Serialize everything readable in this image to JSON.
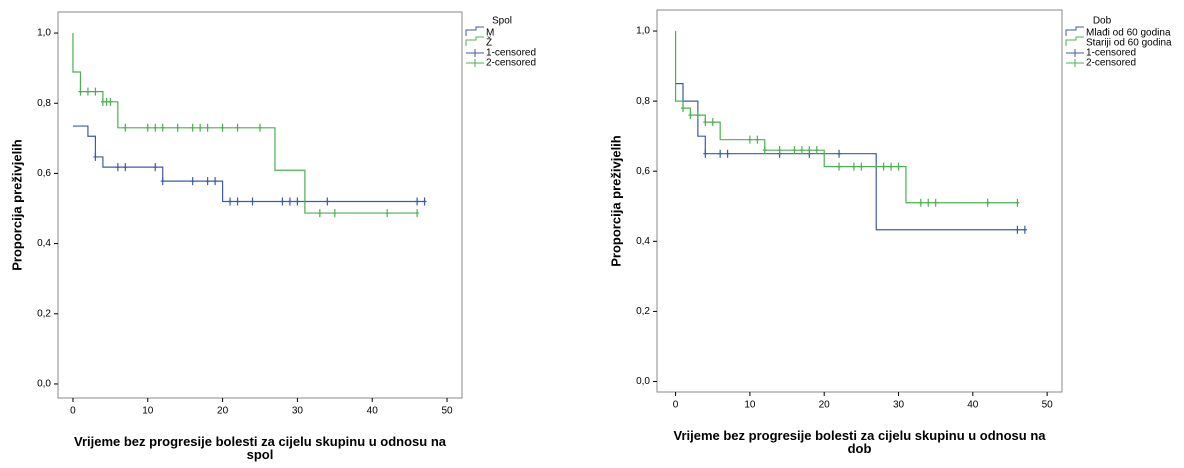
{
  "chart_data": [
    {
      "type": "kaplan-meier",
      "legend_title": "Spol",
      "xlabel": "Vrijeme bez progresije bolesti za cijelu skupinu u odnosu na spol",
      "ylabel": "Proporcija preživjelih",
      "xlim": [
        -2,
        52
      ],
      "ylim": [
        -0.04,
        1.06
      ],
      "xticks": [
        0,
        10,
        20,
        30,
        40,
        50
      ],
      "yticks": [
        {
          "value": 0,
          "label": "0,0"
        },
        {
          "value": 0.2,
          "label": "0,2"
        },
        {
          "value": 0.4,
          "label": "0,4"
        },
        {
          "value": 0.6,
          "label": "0,6"
        },
        {
          "value": 0.8,
          "label": "0,8"
        },
        {
          "value": 1,
          "label": "1,0"
        }
      ],
      "series": [
        {
          "name": "M",
          "color": "#3d5ba9",
          "marker": "step",
          "x": [
            0,
            2,
            3,
            4,
            12,
            20,
            47
          ],
          "values": [
            0.735,
            0.706,
            0.647,
            0.618,
            0.578,
            0.52,
            0.52
          ]
        },
        {
          "name": "Ž",
          "color": "#4cb050",
          "marker": "step",
          "x": [
            0,
            0,
            1,
            4,
            6,
            27,
            31,
            46
          ],
          "values": [
            1,
            0.889,
            0.833,
            0.804,
            0.73,
            0.609,
            0.487,
            0.487
          ]
        },
        {
          "name": "1-censored",
          "color": "#3d5ba9",
          "marker": "plus",
          "x": [
            3,
            6,
            7,
            11,
            12,
            16,
            18,
            19,
            21,
            22,
            24,
            28,
            29,
            30,
            34,
            46,
            47
          ],
          "values": [
            0.647,
            0.618,
            0.618,
            0.618,
            0.578,
            0.578,
            0.578,
            0.578,
            0.52,
            0.52,
            0.52,
            0.52,
            0.52,
            0.52,
            0.52,
            0.52,
            0.52
          ]
        },
        {
          "name": "2-censored",
          "color": "#4cb050",
          "marker": "plus",
          "x": [
            1,
            2,
            3,
            4,
            4.5,
            5,
            7,
            10,
            11,
            12,
            14,
            16,
            17,
            18,
            20,
            22,
            25,
            33,
            35,
            42,
            46
          ],
          "values": [
            0.833,
            0.833,
            0.833,
            0.804,
            0.804,
            0.804,
            0.73,
            0.73,
            0.73,
            0.73,
            0.73,
            0.73,
            0.73,
            0.73,
            0.73,
            0.73,
            0.73,
            0.487,
            0.487,
            0.487,
            0.487
          ]
        }
      ]
    },
    {
      "type": "kaplan-meier",
      "legend_title": "Dob",
      "xlabel": "Vrijeme bez progresije bolesti za cijelu skupinu u odnosu na dob",
      "ylabel": "Proporcija preživjelih",
      "xlim": [
        -2.5,
        52
      ],
      "ylim": [
        -0.03,
        1.06
      ],
      "xticks": [
        0,
        10,
        20,
        30,
        40,
        50
      ],
      "yticks": [
        {
          "value": 0,
          "label": "0,0"
        },
        {
          "value": 0.2,
          "label": "0,2"
        },
        {
          "value": 0.4,
          "label": "0,4"
        },
        {
          "value": 0.6,
          "label": "0,6"
        },
        {
          "value": 0.8,
          "label": "0,8"
        },
        {
          "value": 1,
          "label": "1,0"
        }
      ],
      "series": [
        {
          "name": "Mlađi od 60 godina",
          "color": "#3d5ba9",
          "marker": "step",
          "x": [
            0,
            1,
            3,
            4,
            27,
            47
          ],
          "values": [
            0.85,
            0.8,
            0.7,
            0.65,
            0.433,
            0.433
          ]
        },
        {
          "name": "Stariji od 60 godina",
          "color": "#4cb050",
          "marker": "step",
          "x": [
            0,
            0,
            1,
            2,
            4,
            6,
            12,
            20,
            31,
            46
          ],
          "values": [
            1,
            0.8,
            0.78,
            0.76,
            0.74,
            0.69,
            0.66,
            0.613,
            0.51,
            0.51
          ]
        },
        {
          "name": "1-censored",
          "color": "#3d5ba9",
          "marker": "plus",
          "x": [
            4,
            6,
            7,
            14,
            18,
            22,
            46,
            47
          ],
          "values": [
            0.65,
            0.65,
            0.65,
            0.65,
            0.65,
            0.65,
            0.433,
            0.433
          ]
        },
        {
          "name": "2-censored",
          "color": "#4cb050",
          "marker": "plus",
          "x": [
            1,
            2,
            3,
            4,
            5,
            10,
            11,
            12,
            14,
            16,
            17,
            18,
            19,
            22,
            24,
            25,
            28,
            29,
            30,
            33,
            34,
            35,
            42,
            46
          ],
          "values": [
            0.78,
            0.76,
            0.76,
            0.74,
            0.74,
            0.69,
            0.69,
            0.66,
            0.66,
            0.66,
            0.66,
            0.66,
            0.66,
            0.613,
            0.613,
            0.613,
            0.613,
            0.613,
            0.613,
            0.51,
            0.51,
            0.51,
            0.51,
            0.51
          ]
        }
      ]
    }
  ]
}
